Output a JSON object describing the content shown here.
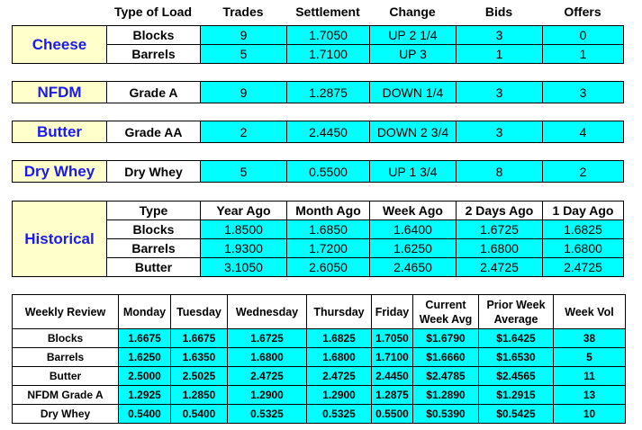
{
  "header": {
    "type_of_load": "Type of Load",
    "trades": "Trades",
    "settlement": "Settlement",
    "change": "Change",
    "bids": "Bids",
    "offers": "Offers"
  },
  "cheese": {
    "name": "Cheese",
    "rows": [
      {
        "type": "Blocks",
        "trades": "9",
        "settlement": "1.7050",
        "change": "UP 2 1/4",
        "bids": "3",
        "offers": "0"
      },
      {
        "type": "Barrels",
        "trades": "5",
        "settlement": "1.7100",
        "change": "UP 3",
        "bids": "1",
        "offers": "1"
      }
    ]
  },
  "nfdm": {
    "name": "NFDM",
    "type": "Grade A",
    "trades": "9",
    "settlement": "1.2875",
    "change": "DOWN 1/4",
    "bids": "3",
    "offers": "3"
  },
  "butter": {
    "name": "Butter",
    "type": "Grade AA",
    "trades": "2",
    "settlement": "2.4450",
    "change": "DOWN 2 3/4",
    "bids": "3",
    "offers": "4"
  },
  "whey": {
    "name": "Dry Whey",
    "type": "Dry Whey",
    "trades": "5",
    "settlement": "0.5500",
    "change": "UP 1 3/4",
    "bids": "8",
    "offers": "2"
  },
  "historical": {
    "name": "Historical",
    "headers": [
      "Type",
      "Year Ago",
      "Month Ago",
      "Week Ago",
      "2 Days Ago",
      "1 Day Ago"
    ],
    "rows": [
      {
        "type": "Blocks",
        "values": [
          "1.8500",
          "1.6850",
          "1.6400",
          "1.6725",
          "1.6825"
        ]
      },
      {
        "type": "Barrels",
        "values": [
          "1.9300",
          "1.7200",
          "1.6250",
          "1.6800",
          "1.6800"
        ]
      },
      {
        "type": "Butter",
        "values": [
          "3.1050",
          "2.6050",
          "2.4650",
          "2.4725",
          "2.4725"
        ]
      }
    ]
  },
  "weekly": {
    "headers": {
      "review": "Weekly Review",
      "monday": "Monday",
      "tuesday": "Tuesday",
      "wednesday": "Wednesday",
      "thursday": "Thursday",
      "friday": "Friday",
      "current_1": "Current",
      "current_2": "Week Avg",
      "prior_1": "Prior Week",
      "prior_2": "Average",
      "vol": "Week Vol"
    },
    "rows": [
      {
        "name": "Blocks",
        "values": [
          "1.6675",
          "1.6675",
          "1.6725",
          "1.6825",
          "1.7050",
          "$1.6790",
          "$1.6425",
          "38"
        ]
      },
      {
        "name": "Barrels",
        "values": [
          "1.6250",
          "1.6350",
          "1.6800",
          "1.6800",
          "1.7100",
          "$1.6660",
          "$1.6530",
          "5"
        ]
      },
      {
        "name": "Butter",
        "values": [
          "2.5000",
          "2.5025",
          "2.4725",
          "2.4725",
          "2.4450",
          "$2.4785",
          "$2.4565",
          "11"
        ]
      },
      {
        "name": "NFDM Grade A",
        "values": [
          "1.2925",
          "1.2850",
          "1.2900",
          "1.2900",
          "1.2875",
          "$1.2890",
          "$1.2915",
          "13"
        ]
      },
      {
        "name": "Dry Whey",
        "values": [
          "0.5400",
          "0.5400",
          "0.5325",
          "0.5325",
          "0.5500",
          "$0.5390",
          "$0.5425",
          "10"
        ]
      }
    ]
  }
}
